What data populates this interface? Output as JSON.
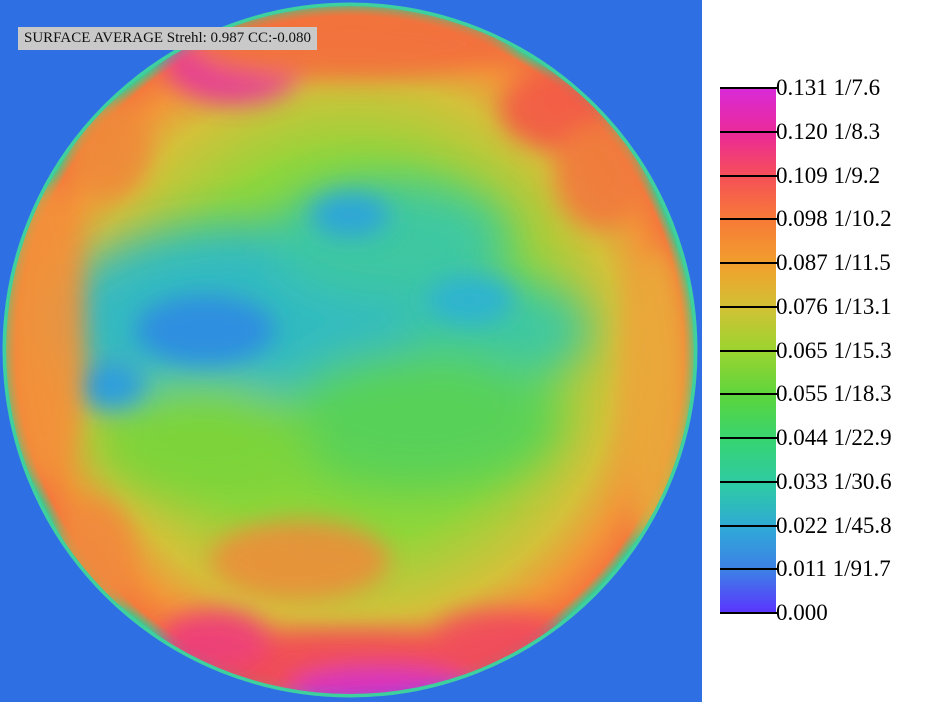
{
  "title": "SURFACE AVERAGE Strehl: 0.987 CC:-0.080",
  "colors": {
    "background": "#2f6fe4",
    "label_background": "#c9c9c9",
    "scale_low": "#5b34ff",
    "scale_high": "#d82ad9"
  },
  "legend": {
    "items": [
      {
        "label": "0.131 1/7.6"
      },
      {
        "label": "0.120 1/8.3"
      },
      {
        "label": "0.109 1/9.2"
      },
      {
        "label": "0.098 1/10.2"
      },
      {
        "label": "0.087 1/11.5"
      },
      {
        "label": "0.076 1/13.1"
      },
      {
        "label": "0.065 1/15.3"
      },
      {
        "label": "0.055 1/18.3"
      },
      {
        "label": "0.044 1/22.9"
      },
      {
        "label": "0.033 1/30.6"
      },
      {
        "label": "0.022 1/45.8"
      },
      {
        "label": "0.011 1/91.7"
      },
      {
        "label": "0.000"
      }
    ]
  }
}
